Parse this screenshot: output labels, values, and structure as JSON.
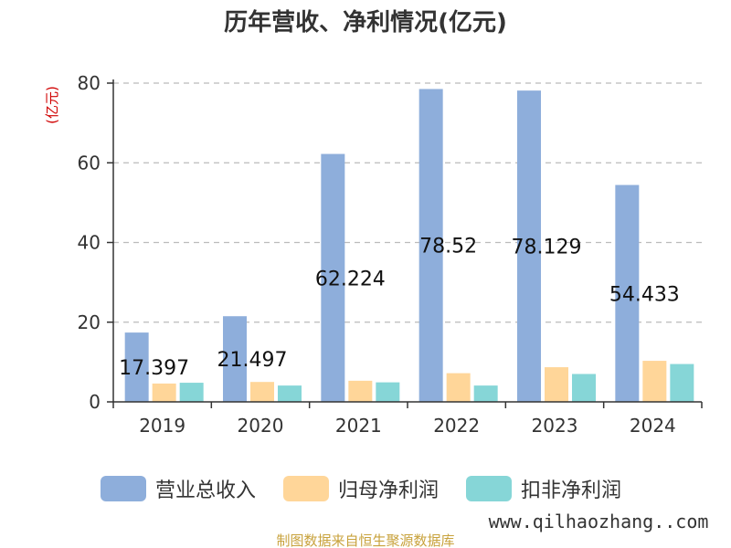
{
  "chart_data": {
    "type": "bar",
    "title": "历年营收、净利情况(亿元)",
    "ylabel": "(亿元)",
    "categories": [
      "2019",
      "2020",
      "2021",
      "2022",
      "2023",
      "2024"
    ],
    "series": [
      {
        "name": "营业总收入",
        "color": "#8eaedb",
        "values": [
          17.397,
          21.497,
          62.224,
          78.52,
          78.129,
          54.433
        ]
      },
      {
        "name": "归母净利润",
        "color": "#ffd699",
        "values": [
          4.6,
          5.0,
          5.3,
          7.2,
          8.7,
          10.3
        ]
      },
      {
        "name": "扣非净利润",
        "color": "#86d6d7",
        "values": [
          4.8,
          4.1,
          4.9,
          4.1,
          7.0,
          9.5
        ]
      }
    ],
    "data_labels": [
      "17.397",
      "21.497",
      "62.224",
      "78.52",
      "78.129",
      "54.433"
    ],
    "ylim": [
      0,
      80
    ],
    "yticks": [
      "0",
      "20",
      "40",
      "60",
      "80"
    ],
    "grid": true,
    "legend_position": "bottom"
  },
  "footer": {
    "source_text": "制图数据来自恒生聚源数据库",
    "watermark": "www.qilhaozhang..com"
  }
}
